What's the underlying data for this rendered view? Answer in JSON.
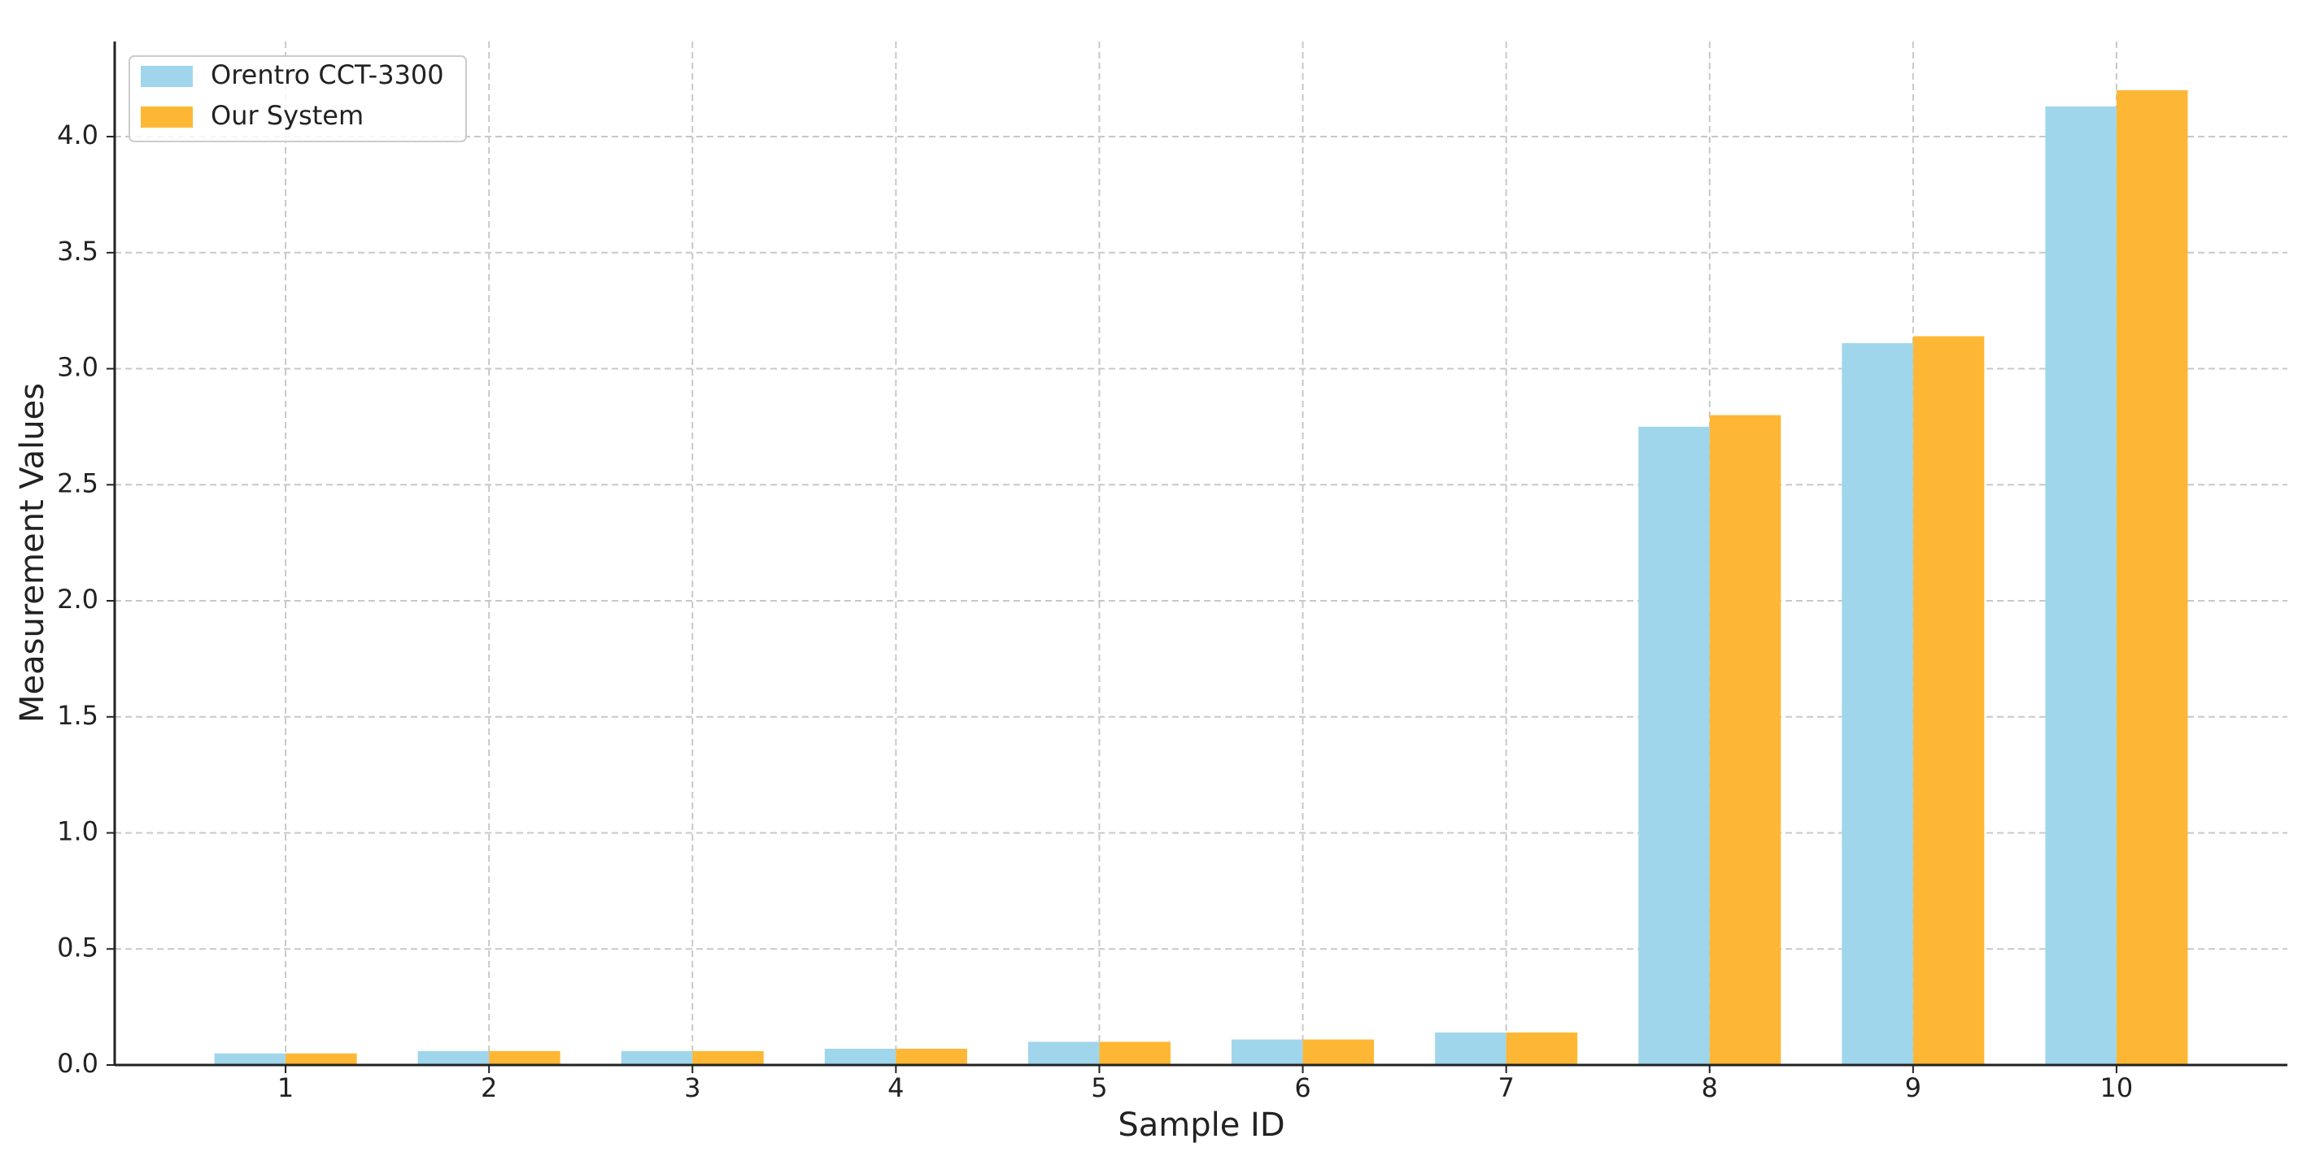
{
  "chart_data": {
    "type": "bar",
    "x_label": "Sample ID",
    "y_label": "Measurement Values",
    "categories": [
      "1",
      "2",
      "3",
      "4",
      "5",
      "6",
      "7",
      "8",
      "9",
      "10"
    ],
    "series": [
      {
        "name": "Orentro CCT-3300",
        "color": "#a0d6ec",
        "values": [
          0.05,
          0.06,
          0.06,
          0.07,
          0.1,
          0.11,
          0.14,
          2.75,
          3.11,
          4.13
        ]
      },
      {
        "name": "Our System",
        "color": "#feb734",
        "values": [
          0.05,
          0.06,
          0.06,
          0.07,
          0.1,
          0.11,
          0.14,
          2.8,
          3.14,
          4.2
        ]
      }
    ],
    "ylim": [
      0,
      4.41
    ],
    "yticks": [
      {
        "value": 0,
        "label": "0.0"
      },
      {
        "value": 0.5,
        "label": "0.5"
      },
      {
        "value": 1,
        "label": "1.0"
      },
      {
        "value": 1.5,
        "label": "1.5"
      },
      {
        "value": 2,
        "label": "2.0"
      },
      {
        "value": 2.5,
        "label": "2.5"
      },
      {
        "value": 3,
        "label": "3.0"
      },
      {
        "value": 3.5,
        "label": "3.5"
      },
      {
        "value": 4,
        "label": "4.0"
      }
    ],
    "grid": true,
    "legend": "upper left"
  }
}
